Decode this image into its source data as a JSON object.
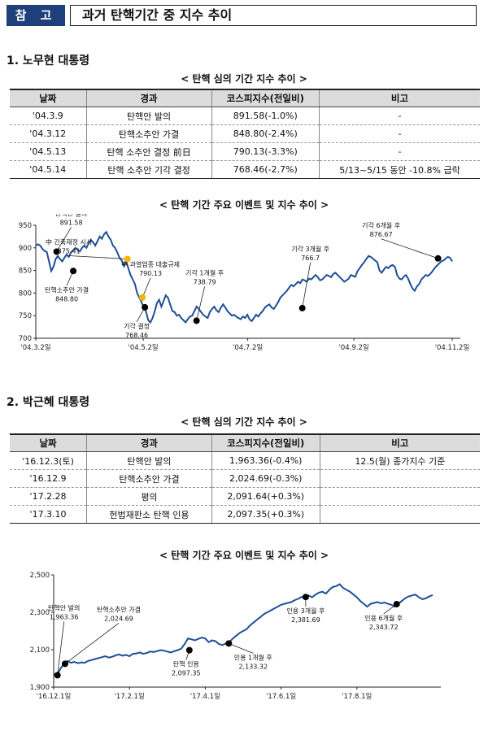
{
  "header": {
    "badge": "참 고",
    "title": "과거 탄핵기간 중 지수 추이"
  },
  "section1": {
    "title": "1. 노무현 대통령",
    "table_caption": "< 탄핵 심의 기간 지수 추이 >",
    "columns": [
      "날짜",
      "경과",
      "코스피지수(전일비)",
      "비고"
    ],
    "rows": [
      [
        "'04.3.9",
        "탄핵안 발의",
        "891.58(-1.0%)",
        "-"
      ],
      [
        "'04.3.12",
        "탄핵소추안 가결",
        "848.80(-2.4%)",
        "-"
      ],
      [
        "'04.5.13",
        "탄핵 소추안 결정 前日",
        "790.13(-3.3%)",
        "-"
      ],
      [
        "'04.5.14",
        "탄핵 소추안 기각 결정",
        "768.46(-2.7%)",
        "5/13~5/15 동안 -10.8% 급락"
      ]
    ],
    "chart_caption": "< 탄핵 기간 주요 이벤트 및 지수 추이 >"
  },
  "section2": {
    "title": "2. 박근혜 대통령",
    "table_caption": "< 탄핵 심의 기간 지수 추이 >",
    "columns": [
      "날짜",
      "경과",
      "코스피지수(전일비)",
      "비고"
    ],
    "rows": [
      [
        "'16.12.3(토)",
        "탄핵안 발의",
        "1,963.36(-0.4%)",
        "12.5(월) 종가지수 기준"
      ],
      [
        "'16.12.9",
        "탄핵소추안 가결",
        "2,024.69(-0.3%)",
        ""
      ],
      [
        "'17.2.28",
        "평의",
        "2,091.64(+0.3%)",
        ""
      ],
      [
        "'17.3.10",
        "헌법재판소 탄핵 인용",
        "2,097.35(+0.3%)",
        ""
      ]
    ],
    "chart_caption": "< 탄핵 기간 주요 이벤트 및 지수 추이 >"
  },
  "chart_data": [
    {
      "type": "line",
      "series_color": "#1f4e96",
      "ylim": [
        700,
        950
      ],
      "yticks": [
        700,
        750,
        800,
        850,
        900,
        950
      ],
      "xticks": [
        {
          "label": "'04.3.2일",
          "t": 0
        },
        {
          "label": "'04.5.2일",
          "t": 0.258
        },
        {
          "label": "'04.7.2일",
          "t": 0.509
        },
        {
          "label": "'04.9.2일",
          "t": 0.764
        },
        {
          "label": "'04.11.2일",
          "t": 1.0
        }
      ],
      "values": [
        905,
        908,
        905,
        898,
        893,
        891,
        870,
        849,
        858,
        875,
        882,
        875,
        870,
        878,
        885,
        880,
        890,
        895,
        900,
        895,
        892,
        900,
        905,
        900,
        910,
        918,
        912,
        905,
        915,
        925,
        920,
        930,
        935,
        925,
        918,
        905,
        900,
        890,
        878,
        872,
        860,
        870,
        855,
        840,
        830,
        820,
        800,
        790,
        780,
        768,
        760,
        740,
        735,
        745,
        760,
        778,
        785,
        770,
        782,
        795,
        790,
        775,
        760,
        758,
        750,
        752,
        745,
        740,
        735,
        742,
        748,
        750,
        760,
        770,
        765,
        758,
        752,
        748,
        745,
        758,
        765,
        770,
        762,
        758,
        768,
        775,
        768,
        760,
        755,
        750,
        752,
        748,
        745,
        742,
        748,
        745,
        752,
        742,
        738,
        745,
        752,
        748,
        755,
        760,
        768,
        772,
        775,
        768,
        765,
        772,
        780,
        790,
        795,
        800,
        805,
        812,
        818,
        815,
        820,
        825,
        822,
        830,
        828,
        825,
        832,
        830,
        835,
        840,
        835,
        828,
        830,
        835,
        840,
        838,
        835,
        842,
        845,
        840,
        835,
        830,
        825,
        828,
        832,
        840,
        838,
        836,
        848,
        855,
        862,
        868,
        875,
        882,
        880,
        876,
        872,
        868,
        850,
        845,
        852,
        858,
        855,
        860,
        862,
        858,
        840,
        832,
        830,
        836,
        840,
        832,
        820,
        810,
        805,
        815,
        820,
        830,
        835,
        840,
        838,
        842,
        848,
        855,
        860,
        865,
        870,
        872,
        876,
        880,
        878,
        870
      ],
      "events": [
        {
          "label": "탄핵안 발의",
          "value_label": "891.58",
          "t": 0.05,
          "v": 891.58,
          "color": "#000"
        },
        {
          "label": "탄핵소추안 가결",
          "value_label": "848.80",
          "t": 0.09,
          "v": 848.8,
          "color": "#000"
        },
        {
          "label": "中 과열업종 대출규제",
          "value_label": "790.13",
          "t": 0.256,
          "v": 790.13,
          "color": "#f4b400"
        },
        {
          "label": "中 긴축재정 시사",
          "value_label": "875.41",
          "t": 0.22,
          "v": 875.41,
          "color": "#f4b400"
        },
        {
          "label": "기각 결정",
          "value_label": "768.46",
          "t": 0.262,
          "v": 768.46,
          "color": "#000"
        },
        {
          "label": "기각 1개월 후",
          "value_label": "738.79",
          "t": 0.386,
          "v": 738.79,
          "color": "#000"
        },
        {
          "label": "기각 3개월 후",
          "value_label": "766.7",
          "t": 0.64,
          "v": 766.7,
          "color": "#000"
        },
        {
          "label": "기각 6개월 후",
          "value_label": "876.67",
          "t": 0.966,
          "v": 876.67,
          "color": "#000"
        }
      ]
    },
    {
      "type": "line",
      "series_color": "#1f4e96",
      "ylim": [
        1900,
        2500
      ],
      "yticks": [
        1900,
        2100,
        2300,
        2500
      ],
      "ytick_labels": [
        "1,900",
        "2,100",
        "2,300",
        "2,500"
      ],
      "xticks": [
        {
          "label": "'16.12.1일",
          "t": 0
        },
        {
          "label": "'17.2.1일",
          "t": 0.2
        },
        {
          "label": "'17.4.1일",
          "t": 0.4
        },
        {
          "label": "'17.6.1일",
          "t": 0.6
        },
        {
          "label": "'17.8.1일",
          "t": 0.8
        }
      ],
      "values": [
        1970,
        1963,
        2000,
        2025,
        2040,
        2030,
        2035,
        2028,
        2032,
        2030,
        2040,
        2045,
        2050,
        2055,
        2060,
        2065,
        2058,
        2062,
        2070,
        2075,
        2068,
        2072,
        2065,
        2078,
        2080,
        2085,
        2078,
        2082,
        2090,
        2088,
        2092,
        2098,
        2095,
        2090,
        2085,
        2092,
        2098,
        2105,
        2130,
        2160,
        2155,
        2150,
        2158,
        2165,
        2160,
        2140,
        2150,
        2145,
        2130,
        2125,
        2133,
        2140,
        2160,
        2175,
        2190,
        2200,
        2210,
        2230,
        2245,
        2260,
        2275,
        2290,
        2300,
        2310,
        2320,
        2330,
        2340,
        2345,
        2350,
        2355,
        2365,
        2372,
        2382,
        2375,
        2390,
        2380,
        2395,
        2405,
        2410,
        2400,
        2420,
        2435,
        2440,
        2450,
        2430,
        2420,
        2410,
        2395,
        2380,
        2360,
        2345,
        2330,
        2345,
        2350,
        2355,
        2348,
        2352,
        2345,
        2340,
        2330,
        2344,
        2360,
        2375,
        2385,
        2390,
        2395,
        2380,
        2370,
        2375,
        2385,
        2392
      ],
      "events": [
        {
          "label": "탄핵안 발의",
          "value_label": "1,963.36",
          "t": 0.01,
          "v": 1963.36,
          "color": "#000"
        },
        {
          "label": "탄핵소추안 가결",
          "value_label": "2,024.69",
          "t": 0.03,
          "v": 2024.69,
          "color": "#000"
        },
        {
          "label": "탄핵 인용",
          "value_label": "2,097.35",
          "t": 0.358,
          "v": 2097.35,
          "color": "#000"
        },
        {
          "label": "인용 1개월 후",
          "value_label": "2,133.32",
          "t": 0.462,
          "v": 2133.32,
          "color": "#000"
        },
        {
          "label": "인용 3개월 후",
          "value_label": "2,381.69",
          "t": 0.665,
          "v": 2381.69,
          "color": "#000"
        },
        {
          "label": "인용 6개월 후",
          "value_label": "2,343.72",
          "t": 0.905,
          "v": 2343.72,
          "color": "#000"
        }
      ]
    }
  ]
}
